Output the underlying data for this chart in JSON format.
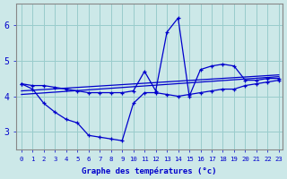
{
  "xlabel": "Graphe des températures (°c)",
  "background_color": "#cce8e8",
  "grid_color": "#99cccc",
  "line_color": "#0000cc",
  "xlim": [
    -0.5,
    23.3
  ],
  "ylim": [
    2.5,
    6.6
  ],
  "yticks": [
    3,
    4,
    5,
    6
  ],
  "xticks": [
    0,
    1,
    2,
    3,
    4,
    5,
    6,
    7,
    8,
    9,
    10,
    11,
    12,
    13,
    14,
    15,
    16,
    17,
    18,
    19,
    20,
    21,
    22,
    23
  ],
  "line_spike_x": [
    0,
    1,
    2,
    3,
    4,
    5,
    6,
    7,
    8,
    9,
    10,
    11,
    12,
    13,
    14,
    15,
    16,
    17,
    18,
    19,
    20,
    21,
    22,
    23
  ],
  "line_spike_y": [
    4.35,
    4.3,
    4.3,
    4.25,
    4.2,
    4.15,
    4.1,
    4.1,
    4.1,
    4.1,
    4.15,
    4.7,
    4.15,
    5.8,
    6.2,
    4.0,
    4.75,
    4.85,
    4.9,
    4.85,
    4.45,
    4.45,
    4.5,
    4.5
  ],
  "line_low_x": [
    0,
    1,
    2,
    3,
    4,
    5,
    6,
    7,
    8,
    9,
    10,
    11,
    12,
    13,
    14,
    15,
    16,
    17,
    18,
    19,
    20,
    21,
    22,
    23
  ],
  "line_low_y": [
    4.35,
    4.2,
    3.8,
    3.55,
    3.35,
    3.25,
    2.9,
    2.85,
    2.8,
    2.75,
    3.8,
    4.1,
    4.1,
    4.05,
    4.0,
    4.05,
    4.1,
    4.15,
    4.2,
    4.2,
    4.3,
    4.35,
    4.4,
    4.45
  ],
  "line_trend1_x": [
    0,
    23
  ],
  "line_trend1_y": [
    4.05,
    4.55
  ],
  "line_trend2_x": [
    0,
    23
  ],
  "line_trend2_y": [
    4.15,
    4.6
  ]
}
